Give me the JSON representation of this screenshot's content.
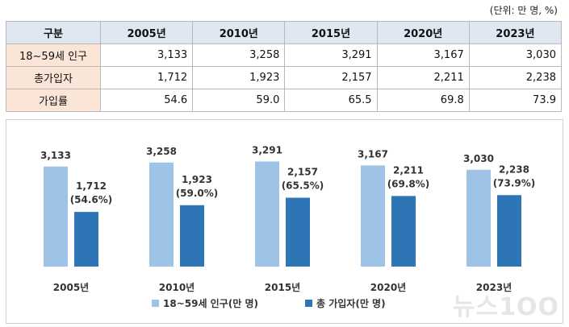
{
  "unit_note": "(단위: 만 명, %)",
  "table": {
    "header": [
      "구분",
      "2005년",
      "2010년",
      "2015년",
      "2020년",
      "2023년"
    ],
    "rows": [
      {
        "label": "18~59세 인구",
        "values": [
          "3,133",
          "3,258",
          "3,291",
          "3,167",
          "3,030"
        ]
      },
      {
        "label": "총가입자",
        "values": [
          "1,712",
          "1,923",
          "2,157",
          "2,211",
          "2,238"
        ]
      },
      {
        "label": "가입률",
        "values": [
          "54.6",
          "59.0",
          "65.5",
          "69.8",
          "73.9"
        ]
      }
    ]
  },
  "chart_data": {
    "type": "bar",
    "categories": [
      "2005년",
      "2010년",
      "2015년",
      "2020년",
      "2023년"
    ],
    "series": [
      {
        "name": "18~59세 인구(만 명)",
        "color": "#9dc3e6",
        "values": [
          3133,
          3258,
          3291,
          3167,
          3030
        ],
        "labels": [
          "3,133",
          "3,258",
          "3,291",
          "3,167",
          "3,030"
        ]
      },
      {
        "name": "총 가입자(만 명)",
        "color": "#2e75b6",
        "values": [
          1712,
          1923,
          2157,
          2211,
          2238
        ],
        "labels": [
          "1,712",
          "1,923",
          "2,157",
          "2,211",
          "2,238"
        ],
        "sublabels": [
          "(54.6%)",
          "(59.0%)",
          "(65.5%)",
          "(69.8%)",
          "(73.9%)"
        ]
      }
    ],
    "ylim": [
      0,
      4000
    ],
    "grid": false,
    "legend": "bottom-center"
  },
  "watermark": "뉴스1OO"
}
